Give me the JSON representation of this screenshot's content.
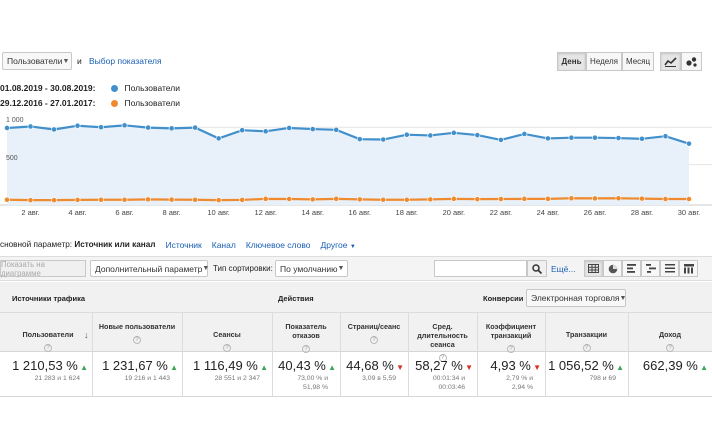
{
  "top": {
    "metric_select": "Пользователи",
    "and_text": "и",
    "select_metric_link": "Выбор показателя",
    "period_day": "День",
    "period_week": "Неделя",
    "period_month": "Месяц"
  },
  "legend": [
    {
      "range": "01.08.2019 - 30.08.2019:",
      "name": "Пользователи",
      "color": "#4190cc"
    },
    {
      "range": "29.12.2016 - 27.01.2017:",
      "name": "Пользователи",
      "color": "#ef8a2e"
    }
  ],
  "chart_data": {
    "type": "line",
    "y_ticks": [
      "1 000",
      "500"
    ],
    "ylim": [
      0,
      1150
    ],
    "x": [
      "1 авг.",
      "2 авг.",
      "3 авг.",
      "4 авг.",
      "5 авг.",
      "6 авг.",
      "7 авг.",
      "8 авг.",
      "9 авг.",
      "10 авг.",
      "11 авг.",
      "12 авг.",
      "13 авг.",
      "14 авг.",
      "15 авг.",
      "16 авг.",
      "17 авг.",
      "18 авг.",
      "19 авг.",
      "20 авг.",
      "21 авг.",
      "22 авг.",
      "23 авг.",
      "24 авг.",
      "25 авг.",
      "26 авг.",
      "27 авг.",
      "28 авг.",
      "29 авг.",
      "30 авг."
    ],
    "x_tick_labels": [
      "2 авг.",
      "4 авг.",
      "6 авг.",
      "8 авг.",
      "10 авг.",
      "12 авг.",
      "14 авг.",
      "16 авг.",
      "18 авг.",
      "20 авг.",
      "22 авг.",
      "24 авг.",
      "26 авг.",
      "28 авг.",
      "30 авг."
    ],
    "series": [
      {
        "values": [
          990,
          1010,
          970,
          1020,
          1000,
          1025,
          995,
          985,
          995,
          850,
          960,
          945,
          990,
          975,
          965,
          840,
          835,
          900,
          890,
          925,
          895,
          830,
          910,
          850,
          860,
          860,
          855,
          845,
          880,
          780
        ]
      },
      {
        "values": [
          30,
          25,
          25,
          28,
          30,
          30,
          35,
          32,
          30,
          25,
          28,
          42,
          40,
          35,
          42,
          35,
          30,
          30,
          35,
          42,
          38,
          40,
          42,
          42,
          50,
          48,
          50,
          45,
          40,
          40
        ]
      }
    ]
  },
  "dims": {
    "primary_label": "сновной параметр:",
    "primary_active": "Источник или канал",
    "links": [
      "Источник",
      "Канал",
      "Ключевое слово",
      "Другое"
    ]
  },
  "toolbar": {
    "show_in_chart": "Показать на диаграмме",
    "secondary_param": "Дополнительный параметр",
    "sort_label": "Тип сортировки:",
    "sort_value": "По умолчанию",
    "search_placeholder": "",
    "more": "Ещё..."
  },
  "table": {
    "group_traffic": "Источники трафика",
    "group_actions": "Действия",
    "group_conversions": "Конверсии",
    "conversions_select": "Электронная торговля",
    "columns": [
      {
        "label": "Пользователи",
        "value": "1 210,53 %",
        "sub1": "21 283 и 1 624",
        "sub2": "",
        "dir": "up"
      },
      {
        "label": "Новые пользователи",
        "value": "1 231,67 %",
        "sub1": "19 216 и 1 443",
        "sub2": "",
        "dir": "up"
      },
      {
        "label": "Сеансы",
        "value": "1 116,49 %",
        "sub1": "28 551 и 2 347",
        "sub2": "",
        "dir": "up"
      },
      {
        "label": "Показатель отказов",
        "value": "40,43 %",
        "sub1": "73,00 % и",
        "sub2": "51,98 %",
        "dir": "up"
      },
      {
        "label": "Страниц/сеанс",
        "value": "44,68 %",
        "sub1": "3,09 в 5,59",
        "sub2": "",
        "dir": "down"
      },
      {
        "label": "Сред. длительность сеанса",
        "value": "58,27 %",
        "sub1": "00:01:34 и",
        "sub2": "00:03:46",
        "dir": "down"
      },
      {
        "label": "Коэффициент транзакций",
        "value": "4,93 %",
        "sub1": "2,79 % и",
        "sub2": "2,94 %",
        "dir": "down"
      },
      {
        "label": "Транзакции",
        "value": "1 056,52 %",
        "sub1": "798 и 69",
        "sub2": "",
        "dir": "up"
      },
      {
        "label": "Доход",
        "value": "662,39 %",
        "sub1": "",
        "sub2": "",
        "dir": "up"
      }
    ]
  },
  "colors": {
    "blue": "#4190cc",
    "orange": "#ef8a2e",
    "up": "#3aa757",
    "down": "#d93025"
  }
}
